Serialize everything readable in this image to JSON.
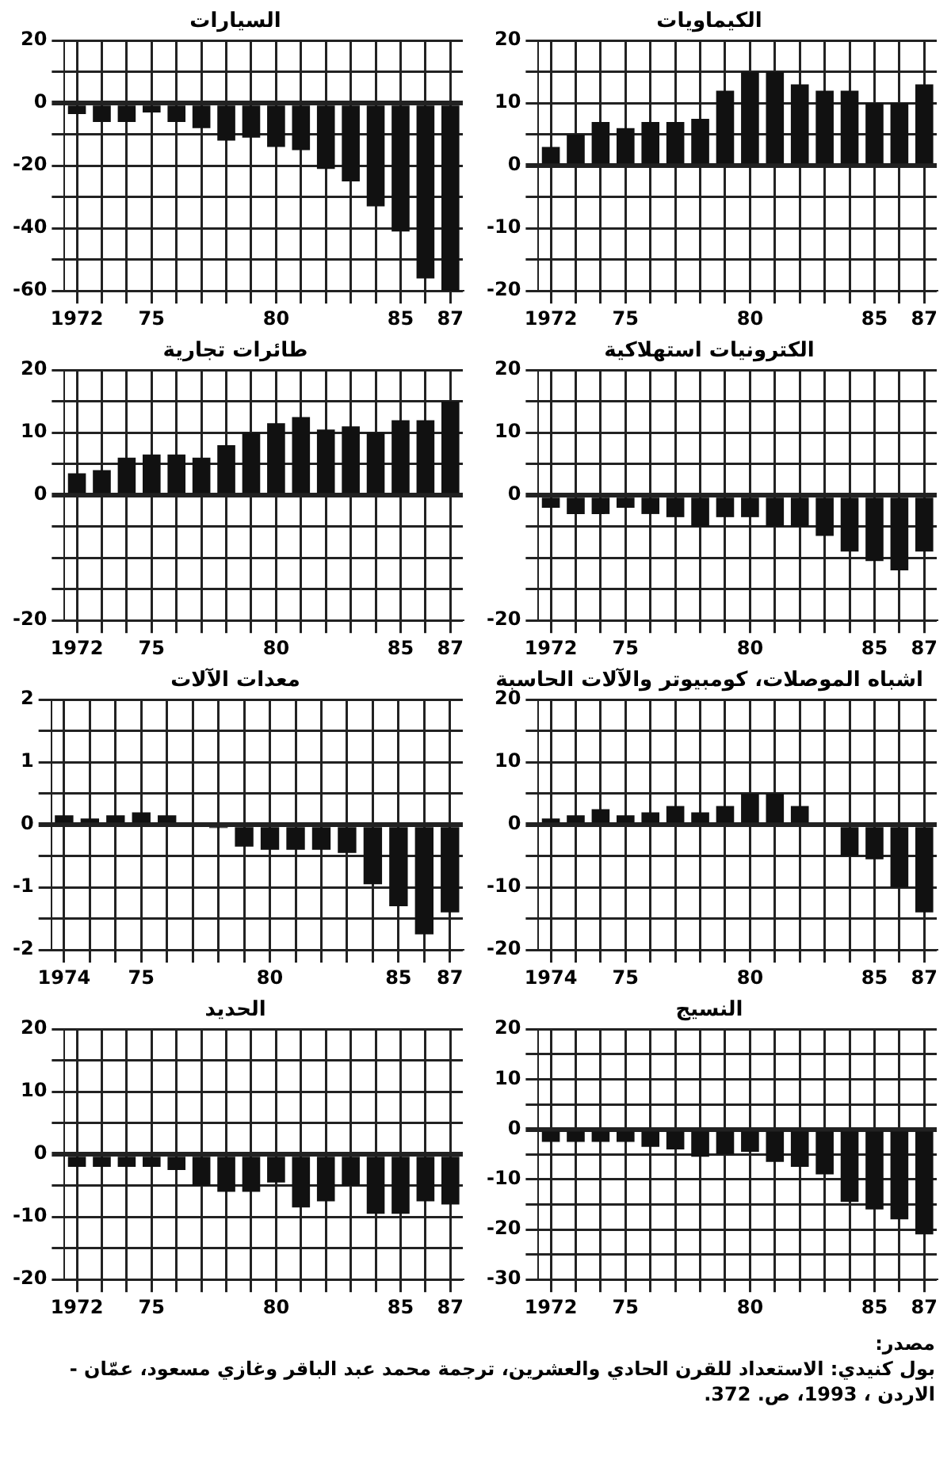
{
  "chart_data": [
    {
      "type": "bar",
      "title": "السيارات",
      "categories": [
        "1972",
        null,
        null,
        "75",
        null,
        null,
        null,
        null,
        "80",
        null,
        null,
        null,
        null,
        "85",
        null,
        "87"
      ],
      "values": [
        -3.5,
        -6,
        -6,
        -3,
        -6,
        -8,
        -12,
        -11,
        -14,
        -15,
        -21,
        -25,
        -33,
        -41,
        -56,
        -60
      ],
      "color": "#111111",
      "ylim": [
        -60,
        20
      ],
      "yticks": [
        20,
        {
          "value": 10,
          "label": null
        },
        0,
        {
          "value": -10,
          "label": null
        },
        -20,
        {
          "value": -30,
          "label": null
        },
        -40,
        {
          "value": -50,
          "label": null
        },
        -60
      ],
      "grid": true
    },
    {
      "type": "bar",
      "title": "الكيماويات",
      "categories": [
        "1972",
        null,
        null,
        "75",
        null,
        null,
        null,
        null,
        "80",
        null,
        null,
        null,
        null,
        "85",
        null,
        "87"
      ],
      "values": [
        3,
        5,
        7,
        6,
        7,
        7,
        7.5,
        12,
        15,
        15,
        13,
        12,
        12,
        10,
        10,
        13
      ],
      "color": "#111111",
      "ylim": [
        -20,
        20
      ],
      "yticks": [
        20,
        {
          "value": 15,
          "label": null
        },
        10,
        {
          "value": 5,
          "label": null
        },
        0,
        {
          "value": -5,
          "label": null
        },
        -10,
        {
          "value": -15,
          "label": null
        },
        -20
      ],
      "grid": true
    },
    {
      "type": "bar",
      "title": "طائرات تجارية",
      "categories": [
        "1972",
        null,
        null,
        "75",
        null,
        null,
        null,
        null,
        "80",
        null,
        null,
        null,
        null,
        "85",
        null,
        "87"
      ],
      "values": [
        3.5,
        4,
        6,
        6.5,
        6.5,
        6,
        8,
        10,
        11.5,
        12.5,
        10.5,
        11,
        10,
        12,
        12,
        15
      ],
      "color": "#111111",
      "ylim": [
        -20,
        20
      ],
      "yticks": [
        20,
        {
          "value": 15,
          "label": null
        },
        10,
        {
          "value": 5,
          "label": null
        },
        0,
        {
          "value": -5,
          "label": null
        },
        {
          "value": -10,
          "label": null
        },
        {
          "value": -15,
          "label": null
        },
        -20
      ],
      "grid": true
    },
    {
      "type": "bar",
      "title": "الكترونيات استهلاكية",
      "categories": [
        "1972",
        null,
        null,
        "75",
        null,
        null,
        null,
        null,
        "80",
        null,
        null,
        null,
        null,
        "85",
        null,
        "87"
      ],
      "values": [
        -2,
        -3,
        -3,
        -2,
        -3,
        -3.5,
        -5,
        -3.5,
        -3.5,
        -5,
        -5,
        -6.5,
        -9,
        -10.5,
        -12,
        -9
      ],
      "color": "#111111",
      "ylim": [
        -20,
        20
      ],
      "yticks": [
        20,
        {
          "value": 15,
          "label": null
        },
        10,
        {
          "value": 5,
          "label": null
        },
        0,
        {
          "value": -5,
          "label": null
        },
        {
          "value": -10,
          "label": null
        },
        {
          "value": -15,
          "label": null
        },
        -20
      ],
      "grid": true
    },
    {
      "type": "bar",
      "title": "معدات الآلات",
      "categories": [
        "1974",
        null,
        null,
        "75",
        null,
        null,
        null,
        null,
        "80",
        null,
        null,
        null,
        null,
        "85",
        null,
        "87"
      ],
      "values": [
        0.15,
        0.1,
        0.15,
        0.2,
        0.15,
        0,
        -0.05,
        -0.35,
        -0.4,
        -0.4,
        -0.4,
        -0.45,
        -0.95,
        -1.3,
        -1.75,
        -1.4
      ],
      "color": "#111111",
      "ylim": [
        -2,
        2
      ],
      "yticks": [
        2,
        {
          "value": 1.5,
          "label": null
        },
        1,
        {
          "value": 0.5,
          "label": null
        },
        0,
        {
          "value": -0.5,
          "label": null
        },
        -1,
        {
          "value": -1.5,
          "label": null
        },
        -2
      ],
      "grid": true
    },
    {
      "type": "bar",
      "title": "اشباه الموصلات، كومبيوتر والآلات الحاسبة",
      "categories": [
        "1974",
        null,
        null,
        "75",
        null,
        null,
        null,
        null,
        "80",
        null,
        null,
        null,
        null,
        "85",
        null,
        "87"
      ],
      "values": [
        1,
        1.5,
        2.5,
        1.5,
        2,
        3,
        2,
        3,
        5,
        5,
        3,
        0,
        -5,
        -5.5,
        -10,
        -14
      ],
      "color": "#111111",
      "ylim": [
        -20,
        20
      ],
      "yticks": [
        20,
        {
          "value": 15,
          "label": null
        },
        10,
        {
          "value": 5,
          "label": null
        },
        0,
        {
          "value": -5,
          "label": null
        },
        -10,
        {
          "value": -15,
          "label": null
        },
        -20
      ],
      "grid": true
    },
    {
      "type": "bar",
      "title": "الحديد",
      "categories": [
        "1972",
        null,
        null,
        "75",
        null,
        null,
        null,
        null,
        "80",
        null,
        null,
        null,
        null,
        "85",
        null,
        "87"
      ],
      "values": [
        -2,
        -2,
        -2,
        -2,
        -2.5,
        -5,
        -6,
        -6,
        -4.5,
        -8.5,
        -7.5,
        -5,
        -9.5,
        -9.5,
        -7.5,
        -8
      ],
      "color": "#111111",
      "ylim": [
        -20,
        20
      ],
      "yticks": [
        20,
        {
          "value": 15,
          "label": null
        },
        10,
        {
          "value": 5,
          "label": null
        },
        0,
        {
          "value": -5,
          "label": null
        },
        -10,
        {
          "value": -15,
          "label": null
        },
        -20
      ],
      "grid": true
    },
    {
      "type": "bar",
      "title": "النسيج",
      "categories": [
        "1972",
        null,
        null,
        "75",
        null,
        null,
        null,
        null,
        "80",
        null,
        null,
        null,
        null,
        "85",
        null,
        "87"
      ],
      "values": [
        -2.5,
        -2.5,
        -2.5,
        -2.5,
        -3.5,
        -4,
        -5.5,
        -5,
        -4.5,
        -6.5,
        -7.5,
        -9,
        -14.5,
        -16,
        -18,
        -21
      ],
      "color": "#111111",
      "ylim": [
        -30,
        20
      ],
      "yticks": [
        20,
        {
          "value": 15,
          "label": null
        },
        10,
        {
          "value": 5,
          "label": null
        },
        0,
        {
          "value": -5,
          "label": null
        },
        -10,
        {
          "value": -15,
          "label": null
        },
        -20,
        {
          "value": -25,
          "label": null
        },
        -30
      ],
      "grid": true,
      "annotations": [
        "مصدر:",
        "بول كنيدي: الاستعداد للقرن الحادي والعشرين، ترجمة محمد عبد الباقر وغازي مسعود، عمّان - الاردن ، 1993، ص. 372."
      ]
    }
  ]
}
